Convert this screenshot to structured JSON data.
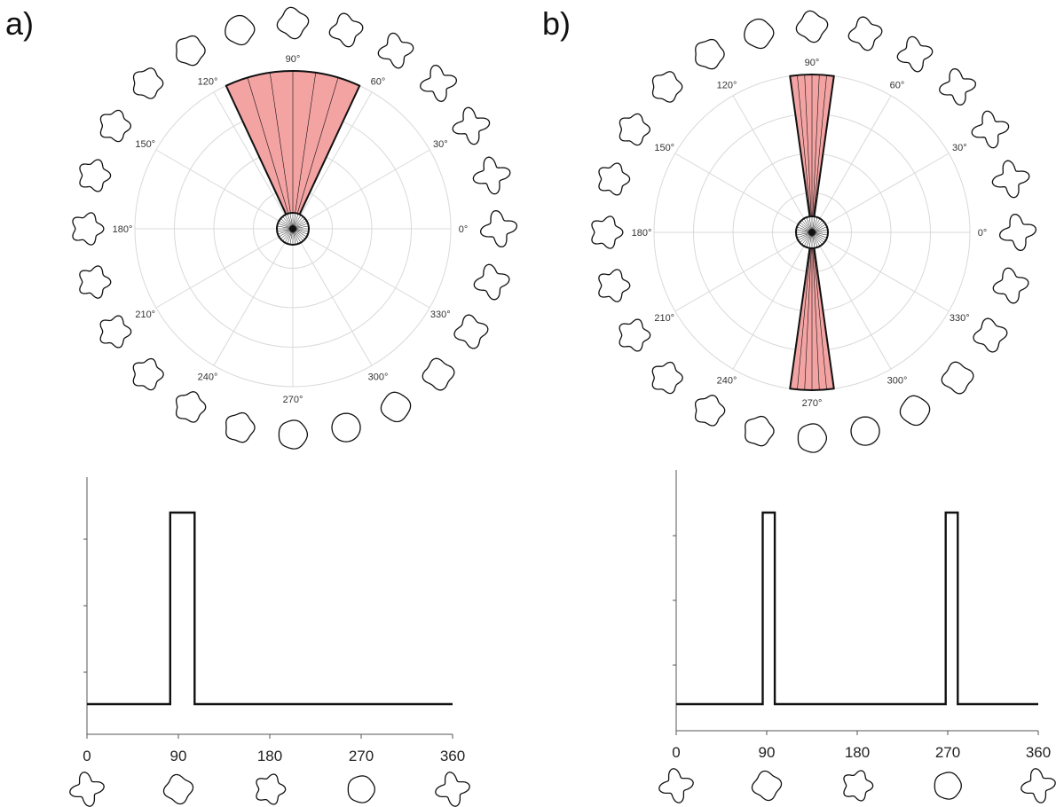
{
  "panels": [
    {
      "label": "a)",
      "polar_angle_labels": [
        "0°",
        "30°",
        "60°",
        "90°",
        "120°",
        "150°",
        "180°",
        "210°",
        "240°",
        "270°",
        "300°",
        "330°"
      ],
      "polar_chart": {
        "type": "polar-histogram",
        "direction_range_deg": [
          65,
          115
        ],
        "peak_direction_deg": 90
      },
      "line_chart": {
        "xticks": [
          0,
          90,
          180,
          270,
          360
        ]
      }
    },
    {
      "label": "b)",
      "polar_angle_labels": [
        "0°",
        "30°",
        "60°",
        "90°",
        "120°",
        "150°",
        "180°",
        "210°",
        "240°",
        "270°",
        "300°",
        "330°"
      ],
      "polar_chart": {
        "type": "polar-histogram",
        "direction_range_deg": [
          [
            82,
            98
          ],
          [
            262,
            278
          ]
        ],
        "peak_direction_deg": [
          90,
          270
        ]
      },
      "line_chart": {
        "xticks": [
          0,
          90,
          180,
          270,
          360
        ]
      }
    }
  ],
  "chart_data": [
    {
      "type": "line",
      "x": [
        0,
        82,
        82,
        106,
        106,
        360
      ],
      "y": [
        0,
        0,
        1,
        1,
        0,
        0
      ],
      "xticks": [
        0,
        90,
        180,
        270,
        360
      ],
      "xlim": [
        0,
        360
      ],
      "title": "",
      "xlabel": "",
      "ylabel": ""
    },
    {
      "type": "line",
      "x": [
        0,
        86,
        86,
        98,
        98,
        268,
        268,
        280,
        280,
        360
      ],
      "y": [
        0,
        0,
        1,
        1,
        0,
        0,
        1,
        1,
        0,
        0
      ],
      "xticks": [
        0,
        90,
        180,
        270,
        360
      ],
      "xlim": [
        0,
        360
      ],
      "title": "",
      "xlabel": "",
      "ylabel": ""
    }
  ],
  "colors": {
    "sector_fill": "#f4a3a3",
    "ink": "#111111",
    "grid": "#d9d9d9"
  },
  "icons": [
    "shape-morph-icon"
  ]
}
